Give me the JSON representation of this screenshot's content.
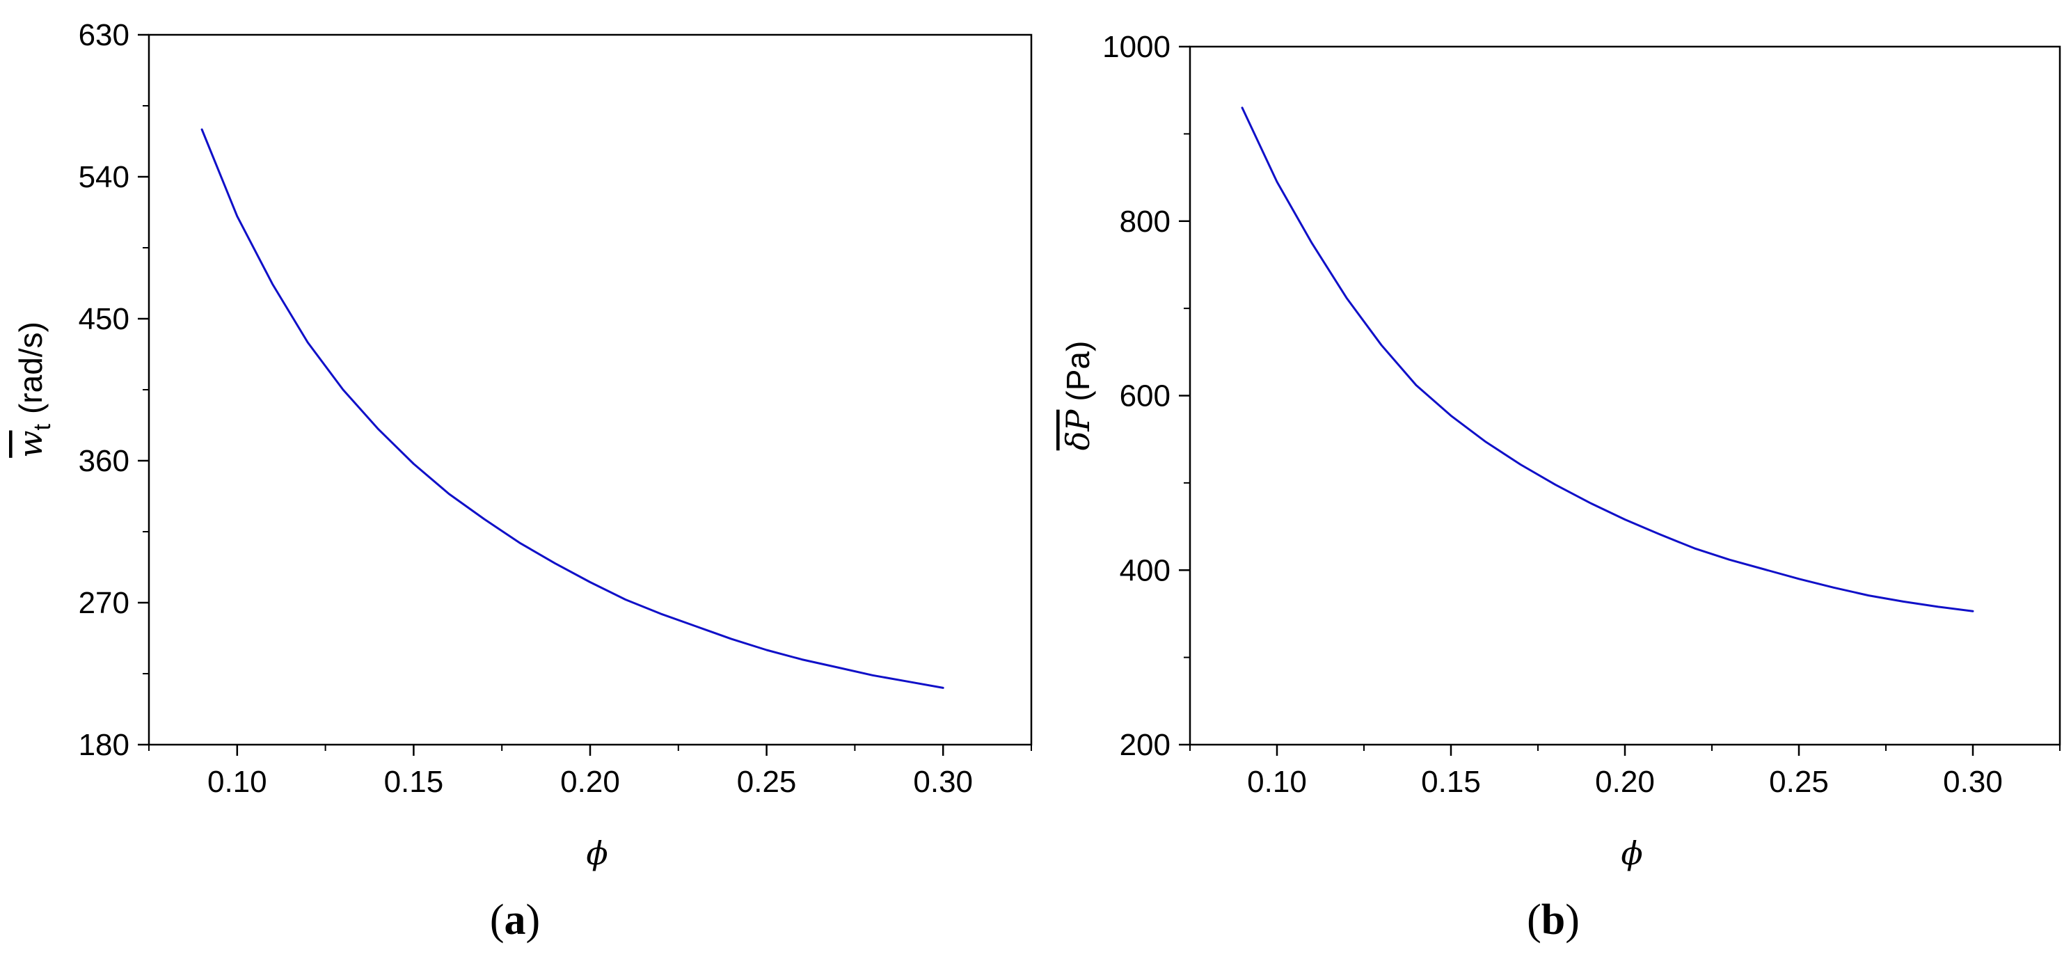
{
  "chart_data": [
    {
      "id": "a",
      "type": "line",
      "caption": "(a)",
      "caption_letter": "a",
      "xlabel": "ϕ",
      "ylabel_symbol": "w",
      "ylabel_subscript": "t",
      "ylabel_unit": "(rad/s)",
      "xlim": [
        0.075,
        0.325
      ],
      "ylim": [
        180,
        630
      ],
      "xticks": [
        0.1,
        0.15,
        0.2,
        0.25,
        0.3
      ],
      "xtick_labels": [
        "0.10",
        "0.15",
        "0.20",
        "0.25",
        "0.30"
      ],
      "yticks": [
        180,
        270,
        360,
        450,
        540,
        630
      ],
      "ytick_labels": [
        "180",
        "270",
        "360",
        "450",
        "540",
        "630"
      ],
      "grid": false,
      "color": "#1010c8",
      "series": [
        {
          "x": [
            0.09,
            0.1,
            0.11,
            0.12,
            0.13,
            0.14,
            0.15,
            0.16,
            0.17,
            0.18,
            0.19,
            0.2,
            0.21,
            0.22,
            0.23,
            0.24,
            0.25,
            0.26,
            0.27,
            0.28,
            0.29,
            0.3
          ],
          "y": [
            570,
            515,
            472,
            435,
            405,
            380,
            358,
            339,
            323,
            308,
            295,
            283,
            272,
            263,
            255,
            247,
            240,
            234,
            229,
            224,
            220,
            216
          ]
        }
      ]
    },
    {
      "id": "b",
      "type": "line",
      "caption": "(b)",
      "caption_letter": "b",
      "xlabel": "ϕ",
      "ylabel_symbol": "δP",
      "ylabel_unit": "(Pa)",
      "xlim": [
        0.075,
        0.325
      ],
      "ylim": [
        200,
        1000
      ],
      "xticks": [
        0.1,
        0.15,
        0.2,
        0.25,
        0.3
      ],
      "xtick_labels": [
        "0.10",
        "0.15",
        "0.20",
        "0.25",
        "0.30"
      ],
      "yticks": [
        200,
        400,
        600,
        800,
        1000
      ],
      "ytick_labels": [
        "200",
        "400",
        "600",
        "800",
        "1000"
      ],
      "grid": false,
      "color": "#1010c8",
      "series": [
        {
          "x": [
            0.09,
            0.1,
            0.11,
            0.12,
            0.13,
            0.14,
            0.15,
            0.16,
            0.17,
            0.18,
            0.19,
            0.2,
            0.21,
            0.22,
            0.23,
            0.24,
            0.25,
            0.26,
            0.27,
            0.28,
            0.29,
            0.3
          ],
          "y": [
            930,
            845,
            775,
            712,
            658,
            612,
            577,
            547,
            521,
            498,
            477,
            458,
            441,
            425,
            412,
            401,
            390,
            380,
            371,
            364,
            358,
            353
          ]
        }
      ]
    }
  ]
}
